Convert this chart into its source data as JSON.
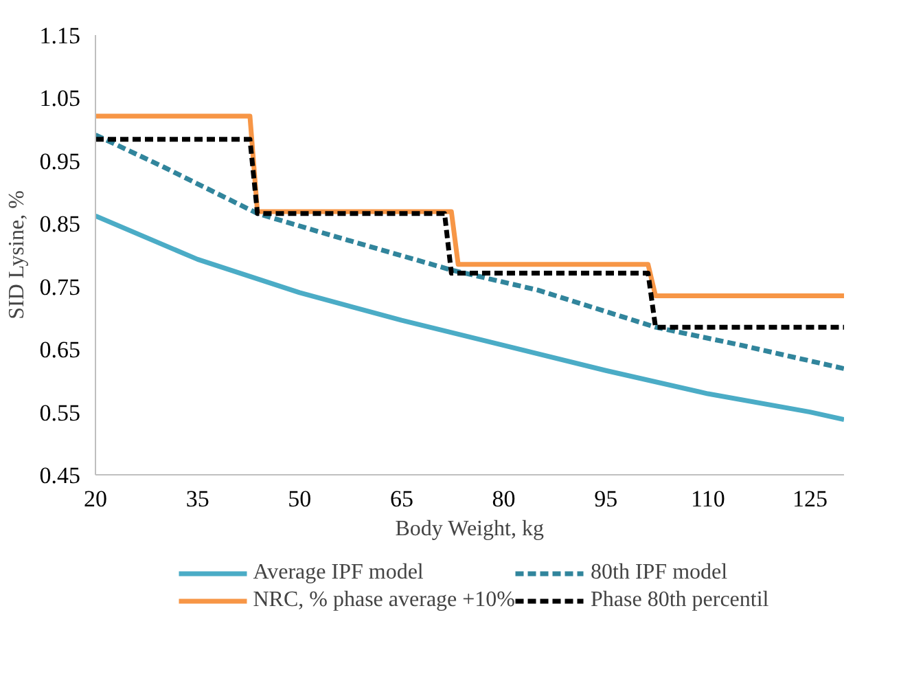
{
  "chart_data": {
    "type": "line",
    "xlabel": "Body Weight, kg",
    "ylabel": "SID Lysine, %",
    "xlim": [
      20,
      130
    ],
    "xticks": [
      20,
      35,
      50,
      65,
      80,
      95,
      110,
      125
    ],
    "ylim": [
      0.45,
      1.15
    ],
    "yticks": [
      0.45,
      0.55,
      0.65,
      0.75,
      0.85,
      0.95,
      1.05,
      1.15
    ],
    "grid": false,
    "legend": "bottom",
    "series": [
      {
        "name": "Average IPF model",
        "color": "#4bacc6",
        "line_style": "solid",
        "x": [
          20,
          35,
          50,
          65,
          80,
          95,
          110,
          125,
          130
        ],
        "values": [
          0.862,
          0.793,
          0.74,
          0.696,
          0.656,
          0.616,
          0.579,
          0.55,
          0.538
        ]
      },
      {
        "name": "NRC, % phase average +10%",
        "color": "#f79646",
        "line_style": "solid",
        "x": [
          20,
          42.7,
          43.8,
          72.3,
          73.3,
          101.2,
          102.3,
          130
        ],
        "values": [
          1.021,
          1.021,
          0.869,
          0.869,
          0.785,
          0.785,
          0.735,
          0.735
        ]
      },
      {
        "name": "80th IPF model",
        "color": "#31859c",
        "line_style": "dashed",
        "x": [
          20,
          30,
          43.8,
          55,
          72.3,
          85,
          102.3,
          115,
          130
        ],
        "values": [
          0.991,
          0.94,
          0.866,
          0.83,
          0.776,
          0.744,
          0.685,
          0.656,
          0.619
        ]
      },
      {
        "name": "Phase 80th percentil",
        "color": "#000000",
        "line_style": "dashed",
        "x": [
          20,
          42.7,
          43.8,
          71.3,
          72.3,
          101.2,
          102.3,
          130
        ],
        "values": [
          0.984,
          0.984,
          0.866,
          0.866,
          0.771,
          0.771,
          0.685,
          0.685
        ]
      }
    ]
  }
}
